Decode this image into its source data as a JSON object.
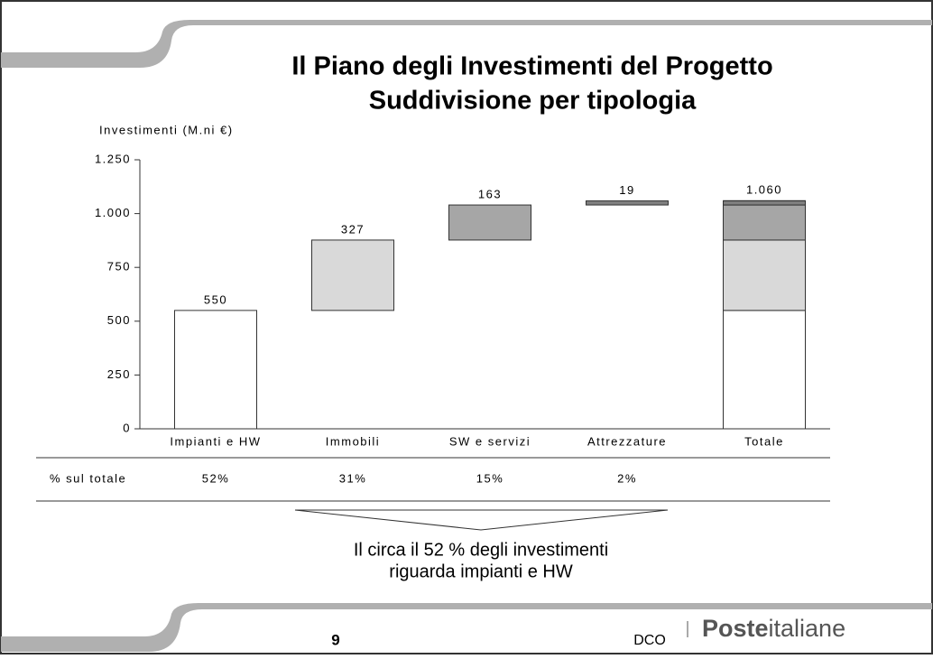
{
  "chart_data": {
    "type": "waterfall",
    "title": [
      "Il Piano degli Investimenti del Progetto",
      "Suddivisione per tipologia"
    ],
    "y_label": "Investimenti (M.ni €)",
    "categories": [
      "Impianti e HW",
      "Immobili",
      "SW e servizi",
      "Attrezzature",
      "Totale"
    ],
    "values": [
      550,
      327,
      163,
      19,
      1060
    ],
    "value_labels": [
      "550",
      "327",
      "163",
      "19",
      "1.060"
    ],
    "colors": [
      "#ffffff",
      "#d9d9d9",
      "#a6a6a6",
      "#808080"
    ],
    "last_is_total": true,
    "ylim": [
      0,
      1250
    ],
    "yticks": [
      0,
      250,
      500,
      750,
      {
        "value": 1000,
        "label": "1.000"
      },
      {
        "value": 1250,
        "label": "1.250"
      }
    ],
    "share_row": {
      "label": "% sul totale",
      "values": [
        "52%",
        "31%",
        "15%",
        "2%"
      ]
    },
    "note": [
      "Il circa il 52 % degli investimenti",
      "riguarda impianti e HW"
    ]
  },
  "footer": {
    "page": "9",
    "unit": "DCO",
    "brand_bold": "Poste",
    "brand_light": "italiane"
  }
}
